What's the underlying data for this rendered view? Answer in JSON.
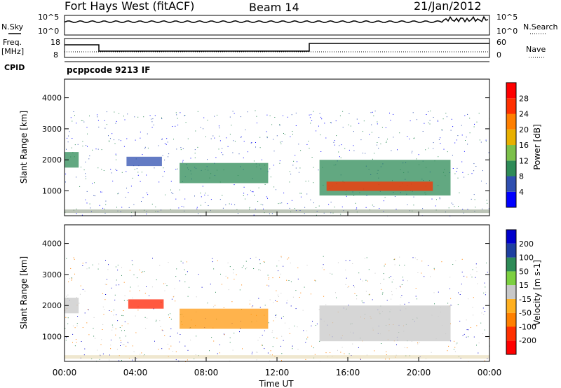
{
  "header": {
    "radar": "Fort Hays West (fitACF)",
    "beam": "Beam 14",
    "date": "21/Jan/2012"
  },
  "side_labels": {
    "nsky": "N.Sky",
    "nsearch": "N.Search",
    "freq": "Freq.",
    "mhz": "[MHz]",
    "nave": "Nave",
    "cpid": "CPID",
    "cpid_value": "pcppcode 9213 IF"
  },
  "strip_ticks": {
    "noise_left": [
      "10^5",
      "10^0"
    ],
    "noise_right": [
      "10^5",
      "10^0"
    ],
    "freq_left": [
      "18",
      "8"
    ],
    "freq_right": [
      "60",
      "0"
    ]
  },
  "chart_data": [
    {
      "type": "heatmap",
      "name": "power",
      "ylabel": "Slant Range [km]",
      "ylim": [
        200,
        4600
      ],
      "yticks": [
        "1000",
        "2000",
        "3000",
        "4000"
      ],
      "colorbar_label": "Power [dB]",
      "colorbar_ticks": [
        "4",
        "8",
        "12",
        "16",
        "20",
        "24",
        "28"
      ],
      "colorbar_range": [
        0,
        32
      ],
      "colors": [
        "#0000ff",
        "#2f4fb0",
        "#2e8b57",
        "#7cc04a",
        "#e8b000",
        "#ff7f00",
        "#ff3000",
        "#ff0000"
      ],
      "bands": [
        {
          "t": [
            0.0,
            0.8
          ],
          "r": [
            1750,
            2250
          ],
          "level": 2
        },
        {
          "t": [
            3.5,
            5.5
          ],
          "r": [
            1800,
            2100
          ],
          "level": 1
        },
        {
          "t": [
            6.5,
            11.5
          ],
          "r": [
            1250,
            1900
          ],
          "level": 2
        },
        {
          "t": [
            14.4,
            21.8
          ],
          "r": [
            850,
            2000
          ],
          "level": 2
        },
        {
          "t": [
            14.8,
            20.8
          ],
          "r": [
            1000,
            1300
          ],
          "level": 6
        }
      ]
    },
    {
      "type": "heatmap",
      "name": "velocity",
      "ylabel": "Slant Range [km]",
      "ylim": [
        200,
        4600
      ],
      "yticks": [
        "1000",
        "2000",
        "3000",
        "4000"
      ],
      "xlabel": "Time UT",
      "xticks": [
        "00:00",
        "04:00",
        "08:00",
        "12:00",
        "16:00",
        "20:00",
        "00:00"
      ],
      "xlim": [
        0,
        24
      ],
      "colorbar_label": "Velocity [m s-1]",
      "colorbar_ticks": [
        "200",
        "100",
        "50",
        "15",
        "-15",
        "-50",
        "-100",
        "-200"
      ],
      "colorbar_range": [
        -250,
        250
      ],
      "colors": [
        "#0000cc",
        "#1e40a0",
        "#2e8b57",
        "#7cd040",
        "#c8c8c8",
        "#ffb020",
        "#ff8000",
        "#ff3000",
        "#ff0000"
      ],
      "bands": [
        {
          "t": [
            0.0,
            0.8
          ],
          "r": [
            1750,
            2250
          ],
          "level": "ground"
        },
        {
          "t": [
            3.6,
            5.6
          ],
          "r": [
            1900,
            2200
          ],
          "level": "-200"
        },
        {
          "t": [
            6.5,
            11.5
          ],
          "r": [
            1250,
            1900
          ],
          "level": "-100"
        },
        {
          "t": [
            14.4,
            21.8
          ],
          "r": [
            850,
            2000
          ],
          "level": "ground"
        }
      ]
    }
  ]
}
